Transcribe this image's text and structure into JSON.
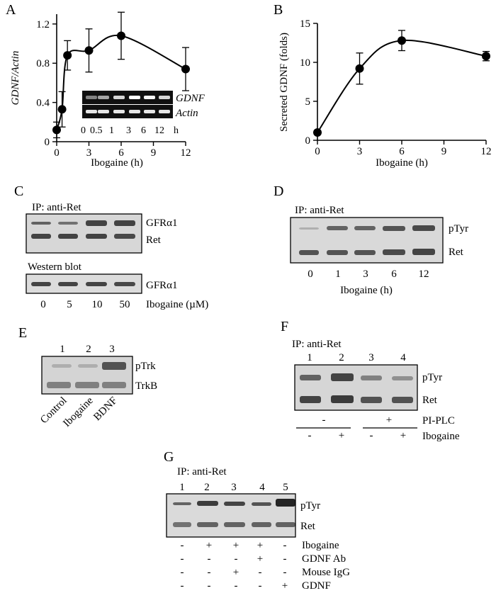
{
  "panels": {
    "A": {
      "label": "A",
      "inset": {
        "rows": [
          "GDNF",
          "Actin"
        ],
        "lanes": [
          "0",
          "0.5",
          "1",
          "3",
          "6",
          "12"
        ],
        "unit": "h",
        "gdnf_intensity": [
          0.25,
          0.45,
          0.75,
          1.0,
          0.95,
          0.75
        ],
        "actin_intensity": [
          0.85,
          0.85,
          0.85,
          0.85,
          0.85,
          0.85
        ]
      }
    },
    "B": {
      "label": "B"
    },
    "C": {
      "label": "C",
      "ip_label": "IP: anti-Ret",
      "wb_label": "Western blot",
      "ip_bands": [
        "GFRα1",
        "Ret"
      ],
      "wb_band": "GFRα1",
      "lanes": [
        "0",
        "5",
        "10",
        "50"
      ],
      "xlabel": "Ibogaine (µM)"
    },
    "D": {
      "label": "D",
      "ip_label": "IP: anti-Ret",
      "bands": [
        "pTyr",
        "Ret"
      ],
      "lanes": [
        "0",
        "1",
        "3",
        "6",
        "12"
      ],
      "xlabel": "Ibogaine (h)"
    },
    "E": {
      "label": "E",
      "lane_numbers": [
        "1",
        "2",
        "3"
      ],
      "bands": [
        "pTrk",
        "TrkB"
      ],
      "lane_labels": [
        "Control",
        "Ibogaine",
        "BDNF"
      ]
    },
    "F": {
      "label": "F",
      "ip_label": "IP: anti-Ret",
      "lane_numbers": [
        "1",
        "2",
        "3",
        "4"
      ],
      "bands": [
        "pTyr",
        "Ret"
      ],
      "treatments": [
        {
          "label": "PI-PLC",
          "signs": [
            "-",
            "+"
          ]
        },
        {
          "label": "Ibogaine",
          "signs": [
            "-",
            "+",
            "-",
            "+"
          ]
        }
      ]
    },
    "G": {
      "label": "G",
      "ip_label": "IP: anti-Ret",
      "lane_numbers": [
        "1",
        "2",
        "3",
        "4",
        "5"
      ],
      "bands": [
        "pTyr",
        "Ret"
      ],
      "treatments": [
        {
          "label": "Ibogaine",
          "signs": [
            "-",
            "+",
            "+",
            "+",
            "-"
          ]
        },
        {
          "label": "GDNF Ab",
          "signs": [
            "-",
            "-",
            "-",
            "+",
            "-"
          ]
        },
        {
          "label": "Mouse IgG",
          "signs": [
            "-",
            "-",
            "+",
            "-",
            "-"
          ]
        },
        {
          "label": "GDNF",
          "signs": [
            "-",
            "-",
            "-",
            "-",
            "+"
          ]
        }
      ]
    }
  },
  "chart_data": [
    {
      "type": "line",
      "panel": "A",
      "xlabel": "Ibogaine (h)",
      "ylabel": "GDNF/Actin",
      "x": [
        0,
        0.5,
        1,
        3,
        6,
        12
      ],
      "y": [
        0.12,
        0.33,
        0.88,
        0.93,
        1.08,
        0.74
      ],
      "yerr": [
        0.08,
        0.18,
        0.15,
        0.22,
        0.24,
        0.22
      ],
      "xlim": [
        0,
        12
      ],
      "ylim": [
        0,
        1.3
      ],
      "xticks": [
        0,
        3,
        6,
        9,
        12
      ],
      "yticks": [
        "0",
        "0.4",
        "0.8",
        "1.2"
      ]
    },
    {
      "type": "line",
      "panel": "B",
      "xlabel": "Ibogaine (h)",
      "ylabel": "Secreted GDNF (folds)",
      "x": [
        0,
        3,
        6,
        12
      ],
      "y": [
        1.0,
        9.2,
        12.8,
        10.8
      ],
      "yerr": [
        0.2,
        2.0,
        1.3,
        0.6
      ],
      "xlim": [
        0,
        12
      ],
      "ylim": [
        0,
        15
      ],
      "xticks": [
        0,
        3,
        6,
        9,
        12
      ],
      "yticks": [
        "0",
        "5",
        "10",
        "15"
      ]
    }
  ]
}
